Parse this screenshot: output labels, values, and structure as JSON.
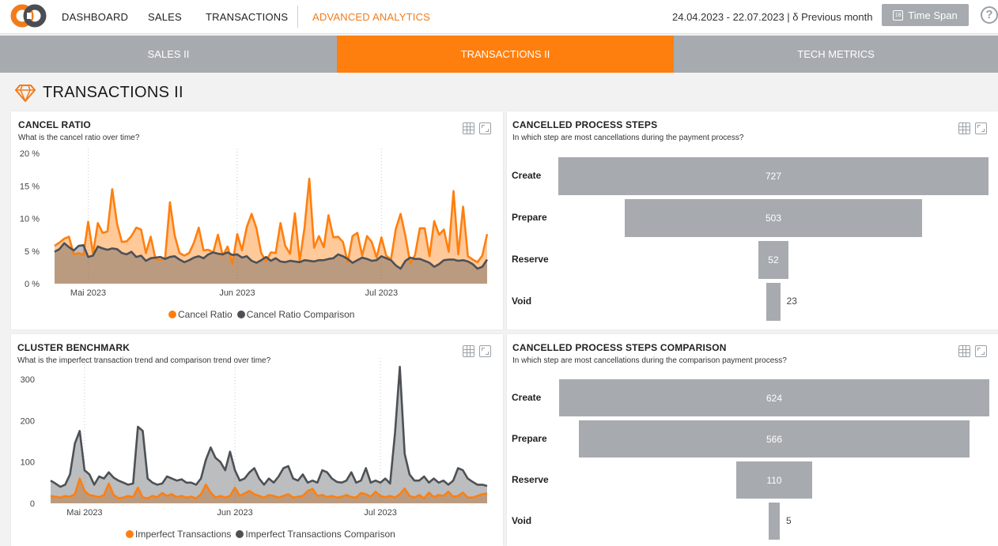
{
  "nav": {
    "items": [
      "DASHBOARD",
      "SALES",
      "TRANSACTIONS",
      "ADVANCED ANALYTICS"
    ],
    "date_range": "24.04.2023 - 22.07.2023 | δ Previous month",
    "time_span_label": "Time Span",
    "calendar_icon_text": "18",
    "help": "?"
  },
  "tabs": [
    {
      "label": "SALES II",
      "active": false
    },
    {
      "label": "TRANSACTIONS II",
      "active": true
    },
    {
      "label": "TECH METRICS",
      "active": false
    }
  ],
  "section_title": "TRANSACTIONS II",
  "colors": {
    "accent": "#ff7f0e",
    "comparison": "#4d5156",
    "bar": "#a7abb0"
  },
  "panels": {
    "cancel_ratio": {
      "title": "CANCEL RATIO",
      "subtitle": "What is the cancel ratio over time?"
    },
    "cancelled_steps": {
      "title": "CANCELLED PROCESS STEPS",
      "subtitle": "In which step are most cancellations during the payment process?"
    },
    "cluster_benchmark": {
      "title": "CLUSTER BENCHMARK",
      "subtitle": "What is the imperfect transaction trend and comparison trend over time?"
    },
    "cancelled_steps_comparison": {
      "title": "CANCELLED PROCESS STEPS COMPARISON",
      "subtitle": "In which step are most cancellations during the comparison payment process?"
    }
  },
  "chart_data": [
    {
      "type": "area",
      "title": "CANCEL RATIO",
      "x_ticks": [
        "Mai 2023",
        "Jun 2023",
        "Jul 2023"
      ],
      "y_ticks": [
        "0 %",
        "5 %",
        "10 %",
        "15 %",
        "20 %"
      ],
      "ylim": [
        0,
        20
      ],
      "x_start": "2023-04-24",
      "series": [
        {
          "name": "Cancel Ratio",
          "color": "#ff7f0e",
          "values": [
            5.8,
            6.3,
            6.9,
            7.2,
            4.5,
            4.7,
            4.4,
            9.5,
            4.6,
            9.3,
            7.8,
            8.0,
            14.5,
            9.2,
            6.4,
            6.5,
            7.3,
            8.6,
            8.3,
            4.7,
            7.2,
            3.8,
            3.6,
            3.9,
            12.5,
            7.4,
            4.7,
            4.3,
            4.7,
            6.3,
            8.6,
            5.1,
            5.2,
            4.8,
            7.5,
            4.3,
            5.7,
            3.0,
            7.6,
            5.1,
            8.7,
            10.7,
            8.5,
            4.7,
            3.4,
            4.8,
            4.7,
            9.3,
            5.8,
            4.6,
            10.8,
            3.5,
            8.5,
            16.1,
            5.5,
            7.3,
            5.6,
            10.5,
            7.1,
            7.2,
            6.4,
            3.3,
            7.3,
            7.8,
            4.3,
            7.3,
            6.4,
            4.0,
            7.1,
            4.3,
            3.7,
            8.4,
            10.7,
            7.3,
            3.1,
            4.4,
            8.5,
            8.5,
            4.2,
            9.6,
            7.5,
            8.3,
            4.9,
            14.2,
            4.5,
            11.8,
            4.2,
            3.7,
            3.3,
            4.3,
            7.6
          ]
        },
        {
          "name": "Cancel Ratio Comparison",
          "color": "#4d5156",
          "values": [
            4.9,
            5.3,
            6.2,
            5.6,
            5.1,
            5.8,
            5.9,
            4.1,
            4.3,
            5.7,
            5.4,
            5.2,
            5.4,
            5.3,
            4.7,
            4.5,
            4.9,
            4.1,
            4.3,
            3.5,
            3.9,
            4.0,
            4.1,
            3.8,
            4.1,
            4.2,
            3.7,
            3.3,
            3.6,
            4.0,
            4.2,
            3.9,
            4.5,
            4.8,
            4.6,
            4.5,
            4.8,
            4.4,
            4.5,
            4.0,
            4.2,
            3.5,
            3.2,
            3.6,
            4.1,
            3.5,
            3.9,
            3.4,
            3.3,
            3.5,
            3.4,
            3.3,
            3.6,
            3.5,
            3.4,
            3.6,
            3.6,
            3.8,
            3.9,
            4.5,
            4.2,
            3.8,
            3.2,
            3.6,
            4.0,
            3.8,
            3.5,
            3.6,
            4.2,
            3.9,
            3.6,
            2.8,
            2.3,
            3.5,
            4.0,
            3.8,
            3.8,
            3.5,
            3.2,
            2.6,
            3.0,
            3.6,
            3.7,
            3.7,
            3.5,
            3.6,
            3.4,
            3.0,
            2.3,
            2.6,
            3.7
          ]
        }
      ],
      "legend_position": "bottom"
    },
    {
      "type": "area",
      "title": "CLUSTER BENCHMARK",
      "x_ticks": [
        "Mai 2023",
        "Jun 2023",
        "Jul 2023"
      ],
      "y_ticks": [
        "0",
        "100",
        "200",
        "300"
      ],
      "ylim": [
        0,
        340
      ],
      "x_start": "2023-04-24",
      "series": [
        {
          "name": "Imperfect Transactions",
          "color": "#ff7f0e",
          "values": [
            18,
            16,
            14,
            18,
            16,
            22,
            60,
            30,
            20,
            18,
            15,
            20,
            48,
            20,
            12,
            14,
            18,
            15,
            38,
            14,
            12,
            18,
            15,
            25,
            18,
            22,
            15,
            18,
            14,
            16,
            12,
            22,
            45,
            26,
            14,
            18,
            14,
            18,
            38,
            18,
            24,
            30,
            22,
            18,
            14,
            20,
            18,
            14,
            18,
            22,
            14,
            16,
            18,
            30,
            35,
            18,
            20,
            15,
            18,
            14,
            16,
            20,
            15,
            14,
            25,
            22,
            16,
            28,
            18,
            15,
            18,
            14,
            22,
            36,
            18,
            14,
            20,
            12,
            26,
            15,
            20,
            18,
            28,
            16,
            18,
            26,
            14,
            14,
            18,
            22,
            24
          ]
        },
        {
          "name": "Imperfect Transactions Comparison",
          "color": "#4d5156",
          "values": [
            55,
            48,
            40,
            45,
            70,
            145,
            175,
            80,
            70,
            45,
            65,
            60,
            75,
            62,
            55,
            50,
            45,
            48,
            185,
            175,
            60,
            50,
            45,
            48,
            65,
            60,
            55,
            58,
            50,
            50,
            45,
            60,
            105,
            135,
            110,
            100,
            80,
            125,
            80,
            55,
            60,
            75,
            85,
            60,
            45,
            60,
            50,
            65,
            85,
            90,
            60,
            55,
            70,
            50,
            55,
            50,
            80,
            75,
            60,
            52,
            50,
            55,
            75,
            50,
            55,
            85,
            50,
            55,
            50,
            60,
            48,
            170,
            330,
            120,
            70,
            55,
            55,
            65,
            50,
            60,
            50,
            55,
            45,
            55,
            85,
            80,
            60,
            52,
            45,
            45,
            42
          ]
        }
      ],
      "legend_position": "bottom"
    },
    {
      "type": "bar",
      "title": "CANCELLED PROCESS STEPS",
      "categories": [
        "Create",
        "Prepare",
        "Reserve",
        "Void"
      ],
      "values": [
        727,
        503,
        52,
        23
      ]
    },
    {
      "type": "bar",
      "title": "CANCELLED PROCESS STEPS COMPARISON",
      "categories": [
        "Create",
        "Prepare",
        "Reserve",
        "Void"
      ],
      "values": [
        624,
        566,
        110,
        5
      ]
    }
  ]
}
